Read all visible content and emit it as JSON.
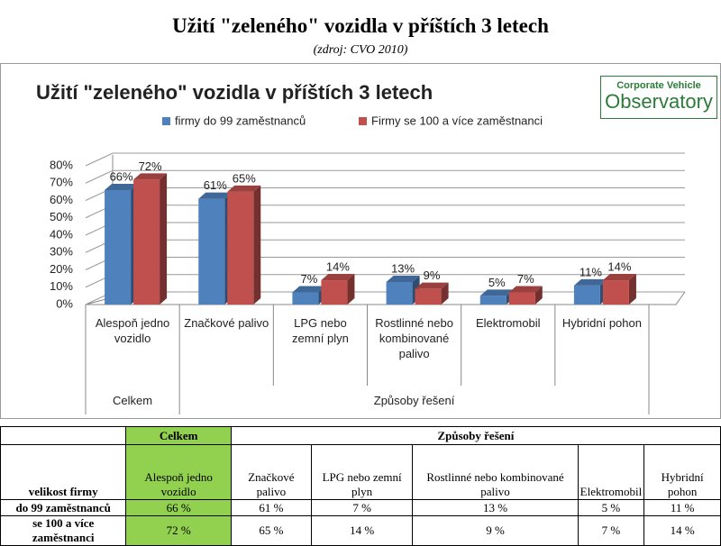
{
  "header": {
    "title": "Užití \"zeleného\" vozidla v příštích 3 letech",
    "source": "(zdroj: CVO 2010)"
  },
  "logo": {
    "line1": "Corporate Vehicle",
    "line2": "Observatory"
  },
  "chart_data": {
    "type": "bar",
    "title": "Užití \"zeleného\" vozidla v příštích 3 letech",
    "categories": [
      "Alespoň jedno vozidlo",
      "Značkové palivo",
      "LPG nebo zemní plyn",
      "Rostlinné nebo kombinované palivo",
      "Elektromobil",
      "Hybridní pohon"
    ],
    "groups": [
      {
        "name": "Celkem",
        "span": 1
      },
      {
        "name": "Způsoby řešení",
        "span": 5
      }
    ],
    "series": [
      {
        "name": "firmy do 99 zaměstnanců",
        "color": "#4f81bd",
        "values": [
          66,
          61,
          7,
          13,
          5,
          11
        ],
        "value_labels": [
          "66%",
          "61%",
          "7%",
          "13%",
          "5%",
          "11%"
        ]
      },
      {
        "name": "Firmy se 100 a více zaměstnanci",
        "color": "#c0504d",
        "values": [
          72,
          65,
          14,
          9,
          7,
          14
        ],
        "value_labels": [
          "72%",
          "65%",
          "14%",
          "9%",
          "7%",
          "14%"
        ]
      }
    ],
    "ylim": [
      0,
      80
    ],
    "yticks": [
      {
        "value": 0,
        "label": "0%"
      },
      {
        "value": 10,
        "label": "10%"
      },
      {
        "value": 20,
        "label": "20%"
      },
      {
        "value": 30,
        "label": "30%"
      },
      {
        "value": 40,
        "label": "40%"
      },
      {
        "value": 50,
        "label": "50%"
      },
      {
        "value": 60,
        "label": "60%"
      },
      {
        "value": 70,
        "label": "70%"
      },
      {
        "value": 80,
        "label": "80%"
      }
    ],
    "grid": true,
    "legend": "top"
  },
  "table": {
    "header": [
      "Celkem",
      "Způsoby řešení"
    ],
    "columns": [
      "velikost firmy",
      "Alespoň jedno vozidlo",
      "Značkové palivo",
      "LPG nebo zemní plyn",
      "Rostlinné nebo kombinované palivo",
      "Elektromobil",
      "Hybridní pohon"
    ],
    "rows": [
      [
        "do 99 zaměstnanců",
        "66 %",
        "61 %",
        "7 %",
        "13 %",
        "5 %",
        "11 %"
      ],
      [
        "se 100 a více zaměstnanci",
        "72 %",
        "65 %",
        "14 %",
        "9 %",
        "7 %",
        "14 %"
      ]
    ]
  }
}
